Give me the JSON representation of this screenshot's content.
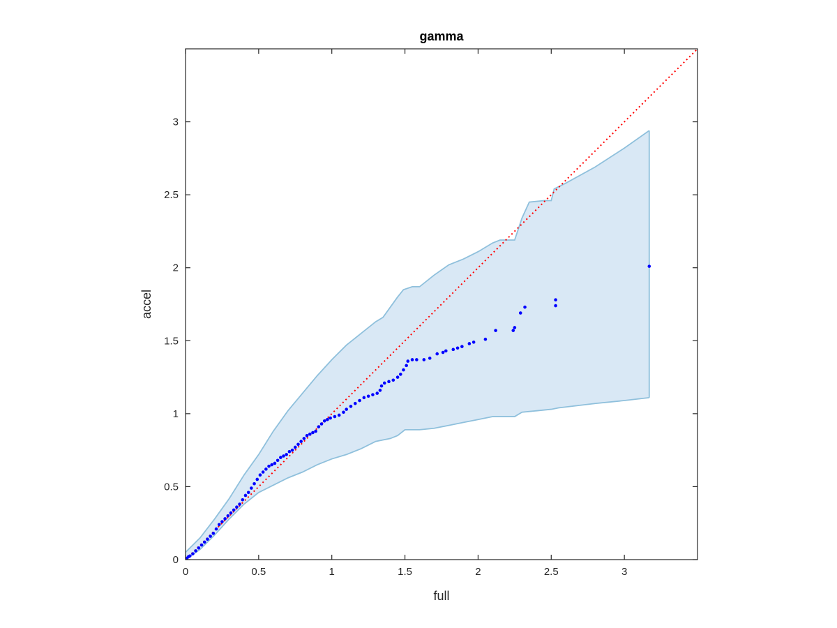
{
  "chart_data": {
    "type": "scatter",
    "title": "gamma",
    "xlabel": "full",
    "ylabel": "accel",
    "xlim": [
      0,
      3.5
    ],
    "ylim": [
      0,
      3.5
    ],
    "xticks": [
      0,
      0.5,
      1,
      1.5,
      2,
      2.5,
      3
    ],
    "xtick_labels": [
      "0",
      "0.5",
      "1",
      "1.5",
      "2",
      "2.5",
      "3"
    ],
    "yticks": [
      0,
      0.5,
      1,
      1.5,
      2,
      2.5,
      3
    ],
    "ytick_labels": [
      "0",
      "0.5",
      "1",
      "1.5",
      "2",
      "2.5",
      "3"
    ],
    "grid": false,
    "reference_line": {
      "style": "dotted",
      "color": "#ff0000",
      "x": [
        0,
        3.5
      ],
      "y": [
        0,
        3.5
      ]
    },
    "band": {
      "color": "#d9e8f5",
      "edge_color": "#8fc0dc",
      "upper": [
        [
          0,
          0.05
        ],
        [
          0.1,
          0.15
        ],
        [
          0.2,
          0.28
        ],
        [
          0.3,
          0.42
        ],
        [
          0.4,
          0.58
        ],
        [
          0.5,
          0.72
        ],
        [
          0.6,
          0.88
        ],
        [
          0.7,
          1.02
        ],
        [
          0.8,
          1.14
        ],
        [
          0.9,
          1.26
        ],
        [
          1.0,
          1.37
        ],
        [
          1.1,
          1.47
        ],
        [
          1.2,
          1.55
        ],
        [
          1.3,
          1.63
        ],
        [
          1.35,
          1.66
        ],
        [
          1.4,
          1.73
        ],
        [
          1.45,
          1.8
        ],
        [
          1.49,
          1.85
        ],
        [
          1.55,
          1.87
        ],
        [
          1.6,
          1.87
        ],
        [
          1.7,
          1.95
        ],
        [
          1.8,
          2.02
        ],
        [
          1.9,
          2.06
        ],
        [
          2.0,
          2.11
        ],
        [
          2.1,
          2.17
        ],
        [
          2.15,
          2.19
        ],
        [
          2.25,
          2.19
        ],
        [
          2.3,
          2.34
        ],
        [
          2.35,
          2.45
        ],
        [
          2.45,
          2.46
        ],
        [
          2.5,
          2.46
        ],
        [
          2.52,
          2.54
        ],
        [
          2.6,
          2.58
        ],
        [
          2.8,
          2.69
        ],
        [
          3.0,
          2.82
        ],
        [
          3.17,
          2.94
        ]
      ],
      "lower": [
        [
          0,
          0
        ],
        [
          0.1,
          0.07
        ],
        [
          0.2,
          0.17
        ],
        [
          0.3,
          0.28
        ],
        [
          0.4,
          0.38
        ],
        [
          0.5,
          0.46
        ],
        [
          0.6,
          0.51
        ],
        [
          0.7,
          0.56
        ],
        [
          0.8,
          0.6
        ],
        [
          0.9,
          0.65
        ],
        [
          1.0,
          0.69
        ],
        [
          1.1,
          0.72
        ],
        [
          1.2,
          0.76
        ],
        [
          1.3,
          0.81
        ],
        [
          1.4,
          0.83
        ],
        [
          1.45,
          0.85
        ],
        [
          1.5,
          0.89
        ],
        [
          1.6,
          0.89
        ],
        [
          1.7,
          0.9
        ],
        [
          1.8,
          0.92
        ],
        [
          1.9,
          0.94
        ],
        [
          2.0,
          0.96
        ],
        [
          2.1,
          0.98
        ],
        [
          2.25,
          0.98
        ],
        [
          2.3,
          1.01
        ],
        [
          2.4,
          1.02
        ],
        [
          2.5,
          1.03
        ],
        [
          2.55,
          1.04
        ],
        [
          2.8,
          1.07
        ],
        [
          3.0,
          1.09
        ],
        [
          3.17,
          1.11
        ]
      ]
    },
    "series": [
      {
        "color": "#0000ff",
        "marker": "dot",
        "points": [
          [
            0.01,
            0.01
          ],
          [
            0.02,
            0.02
          ],
          [
            0.03,
            0.025
          ],
          [
            0.05,
            0.04
          ],
          [
            0.07,
            0.06
          ],
          [
            0.09,
            0.08
          ],
          [
            0.11,
            0.1
          ],
          [
            0.13,
            0.12
          ],
          [
            0.15,
            0.14
          ],
          [
            0.17,
            0.16
          ],
          [
            0.19,
            0.18
          ],
          [
            0.21,
            0.21
          ],
          [
            0.23,
            0.24
          ],
          [
            0.25,
            0.26
          ],
          [
            0.27,
            0.28
          ],
          [
            0.29,
            0.3
          ],
          [
            0.31,
            0.32
          ],
          [
            0.33,
            0.34
          ],
          [
            0.35,
            0.36
          ],
          [
            0.37,
            0.38
          ],
          [
            0.39,
            0.41
          ],
          [
            0.41,
            0.44
          ],
          [
            0.43,
            0.46
          ],
          [
            0.45,
            0.49
          ],
          [
            0.47,
            0.52
          ],
          [
            0.49,
            0.55
          ],
          [
            0.51,
            0.58
          ],
          [
            0.53,
            0.6
          ],
          [
            0.55,
            0.62
          ],
          [
            0.57,
            0.64
          ],
          [
            0.59,
            0.65
          ],
          [
            0.61,
            0.66
          ],
          [
            0.63,
            0.68
          ],
          [
            0.65,
            0.7
          ],
          [
            0.67,
            0.71
          ],
          [
            0.69,
            0.72
          ],
          [
            0.71,
            0.74
          ],
          [
            0.73,
            0.75
          ],
          [
            0.75,
            0.77
          ],
          [
            0.77,
            0.79
          ],
          [
            0.79,
            0.81
          ],
          [
            0.81,
            0.83
          ],
          [
            0.83,
            0.85
          ],
          [
            0.85,
            0.86
          ],
          [
            0.87,
            0.87
          ],
          [
            0.89,
            0.88
          ],
          [
            0.91,
            0.91
          ],
          [
            0.93,
            0.93
          ],
          [
            0.95,
            0.95
          ],
          [
            0.97,
            0.96
          ],
          [
            0.99,
            0.97
          ],
          [
            1.02,
            0.98
          ],
          [
            1.05,
            0.99
          ],
          [
            1.08,
            1.01
          ],
          [
            1.1,
            1.03
          ],
          [
            1.13,
            1.05
          ],
          [
            1.16,
            1.07
          ],
          [
            1.19,
            1.09
          ],
          [
            1.22,
            1.11
          ],
          [
            1.25,
            1.12
          ],
          [
            1.28,
            1.13
          ],
          [
            1.31,
            1.14
          ],
          [
            1.33,
            1.16
          ],
          [
            1.34,
            1.19
          ],
          [
            1.36,
            1.21
          ],
          [
            1.39,
            1.22
          ],
          [
            1.42,
            1.23
          ],
          [
            1.45,
            1.25
          ],
          [
            1.47,
            1.27
          ],
          [
            1.49,
            1.3
          ],
          [
            1.51,
            1.33
          ],
          [
            1.52,
            1.36
          ],
          [
            1.55,
            1.37
          ],
          [
            1.58,
            1.37
          ],
          [
            1.63,
            1.37
          ],
          [
            1.67,
            1.38
          ],
          [
            1.72,
            1.41
          ],
          [
            1.76,
            1.42
          ],
          [
            1.78,
            1.43
          ],
          [
            1.83,
            1.44
          ],
          [
            1.86,
            1.45
          ],
          [
            1.89,
            1.46
          ],
          [
            1.94,
            1.48
          ],
          [
            1.97,
            1.49
          ],
          [
            2.05,
            1.51
          ],
          [
            2.12,
            1.57
          ],
          [
            2.24,
            1.57
          ],
          [
            2.25,
            1.59
          ],
          [
            2.29,
            1.69
          ],
          [
            2.32,
            1.73
          ],
          [
            2.53,
            1.74
          ],
          [
            2.53,
            1.78
          ],
          [
            3.17,
            2.01
          ]
        ]
      }
    ]
  }
}
